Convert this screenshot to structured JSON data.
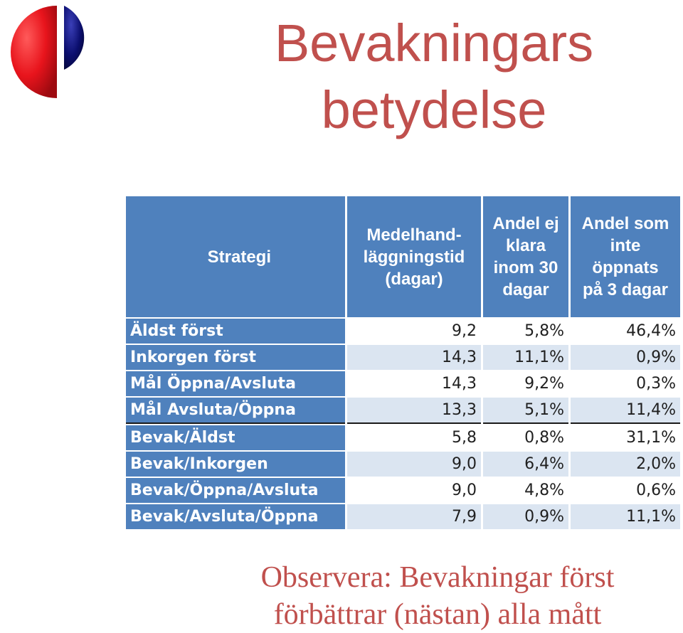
{
  "title": {
    "line1": "Bevakningars",
    "line2": "betydelse"
  },
  "table": {
    "headers": {
      "strategy": "Strategi",
      "handling_time": [
        "Medelhand-",
        "läggningstid",
        "(dagar)"
      ],
      "not_done_30": [
        "Andel ej",
        "klara",
        "inom 30",
        "dagar"
      ],
      "not_opened_3": [
        "Andel som",
        "inte",
        "öppnats",
        "på 3 dagar"
      ]
    },
    "rows": [
      {
        "strategy": "Äldst först",
        "handling_time": "9,2",
        "not_done_30": "5,8%",
        "not_opened_3": "46,4%"
      },
      {
        "strategy": "Inkorgen först",
        "handling_time": "14,3",
        "not_done_30": "11,1%",
        "not_opened_3": "0,9%"
      },
      {
        "strategy": "Mål Öppna/Avsluta",
        "handling_time": "14,3",
        "not_done_30": "9,2%",
        "not_opened_3": "0,3%"
      },
      {
        "strategy": "Mål Avsluta/Öppna",
        "handling_time": "13,3",
        "not_done_30": "5,1%",
        "not_opened_3": "11,4%"
      },
      {
        "strategy": "Bevak/Äldst",
        "handling_time": "5,8",
        "not_done_30": "0,8%",
        "not_opened_3": "31,1%"
      },
      {
        "strategy": "Bevak/Inkorgen",
        "handling_time": "9,0",
        "not_done_30": "6,4%",
        "not_opened_3": "2,0%"
      },
      {
        "strategy": "Bevak/Öppna/Avsluta",
        "handling_time": "9,0",
        "not_done_30": "4,8%",
        "not_opened_3": "0,6%"
      },
      {
        "strategy": "Bevak/Avsluta/Öppna",
        "handling_time": "7,9",
        "not_done_30": "0,9%",
        "not_opened_3": "11,1%"
      }
    ]
  },
  "note": {
    "line1": "Observera: Bevakningar först",
    "line2": "förbättrar (nästan) alla mått"
  },
  "colors": {
    "accent": "#c0504d",
    "header_blue": "#4f81bd",
    "row_tint": "#dbe5f1",
    "logo_red": "#e8141c",
    "logo_navy": "#0b0e6e"
  },
  "icons": {
    "logo": "red-navy-split-circle-logo"
  }
}
